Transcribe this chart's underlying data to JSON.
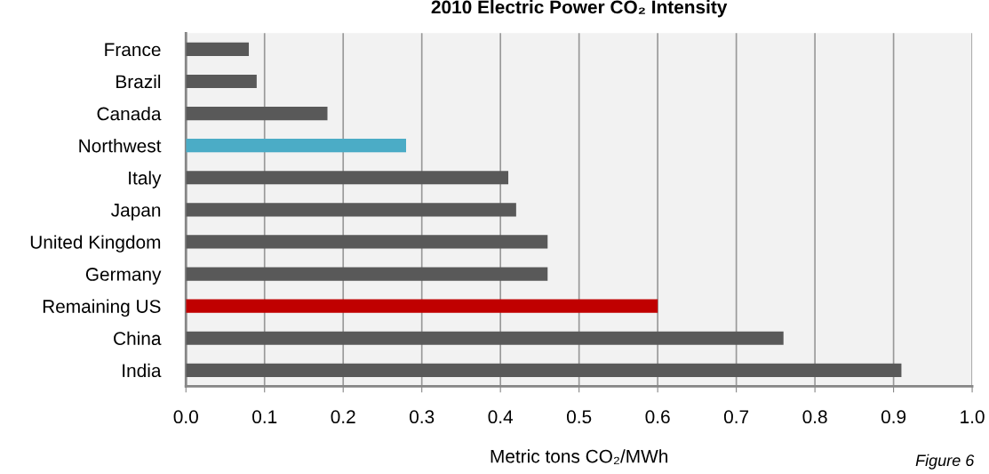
{
  "chart_data": {
    "type": "bar",
    "orientation": "horizontal",
    "title": "2010 Electric Power CO₂ Intensity",
    "xlabel": "Metric tons CO₂/MWh",
    "categories": [
      "France",
      "Brazil",
      "Canada",
      "Northwest",
      "Italy",
      "Japan",
      "United Kingdom",
      "Germany",
      "Remaining US",
      "China",
      "India"
    ],
    "values": [
      0.08,
      0.09,
      0.18,
      0.28,
      0.41,
      0.42,
      0.46,
      0.46,
      0.6,
      0.76,
      0.91
    ],
    "colors": [
      "#595959",
      "#595959",
      "#595959",
      "#4bacc6",
      "#595959",
      "#595959",
      "#595959",
      "#595959",
      "#c00000",
      "#595959",
      "#595959"
    ],
    "xlim": [
      0.0,
      1.0
    ],
    "xticks": [
      {
        "value": 0.0,
        "label": "0.0"
      },
      {
        "value": 0.1,
        "label": "0.1"
      },
      {
        "value": 0.2,
        "label": "0.2"
      },
      {
        "value": 0.3,
        "label": "0.3"
      },
      {
        "value": 0.4,
        "label": "0.4"
      },
      {
        "value": 0.5,
        "label": "0.5"
      },
      {
        "value": 0.6,
        "label": "0.6"
      },
      {
        "value": 0.7,
        "label": "0.7"
      },
      {
        "value": 0.8,
        "label": "0.8"
      },
      {
        "value": 0.9,
        "label": "0.9"
      },
      {
        "value": 1.0,
        "label": "1.0"
      }
    ],
    "grid": "x",
    "legend": false,
    "annotations": [
      "Figure 6"
    ]
  }
}
